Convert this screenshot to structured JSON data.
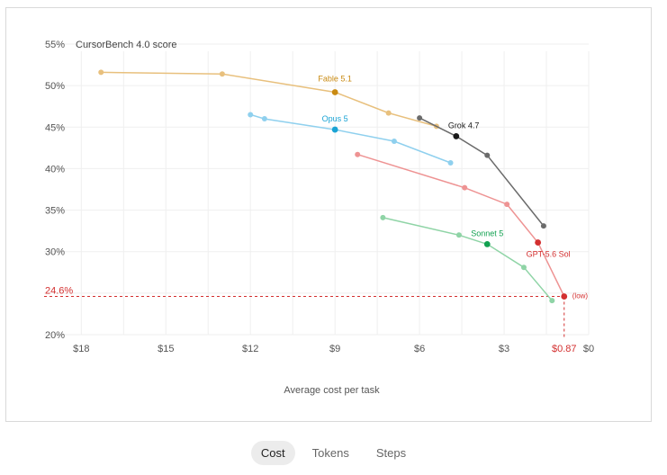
{
  "chart_data": {
    "type": "line",
    "ylabel_prefix": "55%",
    "ylabel": "CursorBench 4.0 score",
    "xlabel": "Average cost per task",
    "x_reversed": true,
    "xlim": [
      0,
      19
    ],
    "ylim": [
      20,
      55
    ],
    "grid": true,
    "x_ticks": [
      {
        "value": 18,
        "label": "$18"
      },
      {
        "value": 15,
        "label": "$15"
      },
      {
        "value": 12,
        "label": "$12"
      },
      {
        "value": 9,
        "label": "$9"
      },
      {
        "value": 6,
        "label": "$6"
      },
      {
        "value": 3,
        "label": "$3"
      },
      {
        "value": 0,
        "label": "$0"
      }
    ],
    "y_ticks": [
      {
        "value": 50,
        "label": "50%"
      },
      {
        "value": 45,
        "label": "45%"
      },
      {
        "value": 40,
        "label": "40%"
      },
      {
        "value": 35,
        "label": "35%"
      },
      {
        "value": 30,
        "label": "30%"
      },
      {
        "value": 20,
        "label": "20%"
      }
    ],
    "series": [
      {
        "name": "Fable 5.1",
        "color": "#e8c07d",
        "accent": "#c98a12",
        "points": [
          [
            17.3,
            51.6
          ],
          [
            13.0,
            51.4
          ],
          [
            9.0,
            49.2
          ],
          [
            7.1,
            46.7
          ],
          [
            5.4,
            45.1
          ]
        ],
        "highlight": 2
      },
      {
        "name": "Grok 4.7",
        "color": "#6b6b6b",
        "accent": "#1a1a1a",
        "points": [
          [
            6.0,
            46.1
          ],
          [
            4.7,
            43.9
          ],
          [
            3.6,
            41.6
          ],
          [
            1.6,
            33.1
          ]
        ],
        "highlight": 1
      },
      {
        "name": "Opus 5",
        "color": "#8fd0ee",
        "accent": "#1aa3d4",
        "points": [
          [
            12.0,
            46.5
          ],
          [
            11.5,
            46.0
          ],
          [
            9.0,
            44.7
          ],
          [
            6.9,
            43.3
          ],
          [
            4.9,
            40.7
          ]
        ],
        "highlight": 2
      },
      {
        "name": "GPT-5.6 Sol",
        "color": "#ee9393",
        "accent": "#d32f2f",
        "points": [
          [
            8.2,
            41.7
          ],
          [
            4.4,
            37.7
          ],
          [
            2.9,
            35.7
          ],
          [
            1.8,
            31.1
          ],
          [
            0.87,
            24.6
          ]
        ],
        "highlight": 3
      },
      {
        "name": "Sonnet 5",
        "color": "#8fd4a6",
        "accent": "#12a150",
        "points": [
          [
            7.3,
            34.1
          ],
          [
            4.6,
            32.0
          ],
          [
            3.6,
            30.9
          ],
          [
            2.3,
            28.1
          ],
          [
            1.3,
            24.1
          ]
        ],
        "highlight": 2
      }
    ],
    "annotation": {
      "x": 0.87,
      "y": 24.6,
      "x_label": "$0.87",
      "y_label": "24.6%",
      "point_label": "(low)",
      "color": "#d32f2f"
    }
  },
  "tabs": [
    {
      "label": "Cost",
      "active": true
    },
    {
      "label": "Tokens",
      "active": false
    },
    {
      "label": "Steps",
      "active": false
    }
  ]
}
